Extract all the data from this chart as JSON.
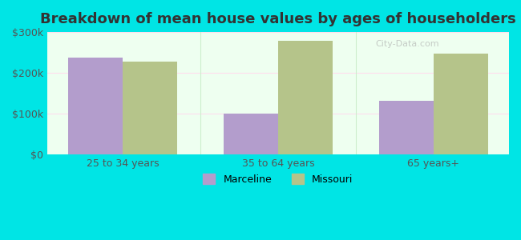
{
  "title": "Breakdown of mean house values by ages of householders",
  "categories": [
    "25 to 34 years",
    "35 to 64 years",
    "65 years+"
  ],
  "marceline_values": [
    237000,
    100000,
    132000
  ],
  "missouri_values": [
    228000,
    278000,
    248000
  ],
  "marceline_color": "#b39dcc",
  "missouri_color": "#b5c48a",
  "background_color": "#00e5e5",
  "plot_bg_color": "#eefff0",
  "ylim": [
    0,
    300000
  ],
  "yticks": [
    0,
    100000,
    200000,
    300000
  ],
  "ytick_labels": [
    "$0",
    "$100k",
    "$200k",
    "$300k"
  ],
  "legend_labels": [
    "Marceline",
    "Missouri"
  ],
  "bar_width": 0.35,
  "title_fontsize": 13,
  "tick_fontsize": 9,
  "legend_fontsize": 9
}
